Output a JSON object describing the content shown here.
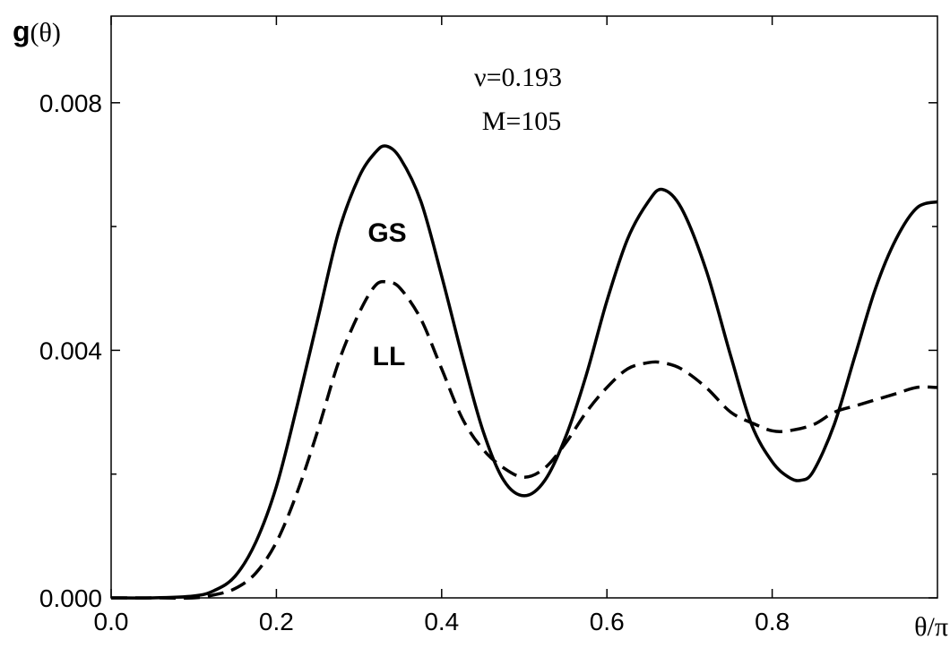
{
  "chart_data": {
    "type": "line",
    "xlabel": "θ/π",
    "ylabel_bold": "g",
    "ylabel_rest": "(θ)",
    "xlim": [
      0.0,
      1.0
    ],
    "ylim": [
      0.0,
      0.0094
    ],
    "xticks": [
      0.0,
      0.2,
      0.4,
      0.6,
      0.8
    ],
    "xtick_labels": [
      "0.0",
      "0.2",
      "0.4",
      "0.6",
      "0.8"
    ],
    "yticks": [
      0.0,
      0.004,
      0.008
    ],
    "ytick_labels": [
      "0.000",
      "0.004",
      "0.008"
    ],
    "minor_yticks": [
      0.002,
      0.006
    ],
    "annotations": [
      "ν=0.193",
      "M=105"
    ],
    "series": [
      {
        "name": "GS",
        "style": "solid",
        "x": [
          0.0,
          0.05,
          0.1,
          0.125,
          0.15,
          0.175,
          0.2,
          0.225,
          0.25,
          0.275,
          0.3,
          0.32,
          0.333,
          0.35,
          0.375,
          0.4,
          0.425,
          0.45,
          0.475,
          0.5,
          0.525,
          0.55,
          0.575,
          0.6,
          0.625,
          0.65,
          0.667,
          0.69,
          0.72,
          0.75,
          0.775,
          0.8,
          0.82,
          0.835,
          0.85,
          0.875,
          0.9,
          0.925,
          0.95,
          0.975,
          1.0
        ],
        "y": [
          0.0,
          0.0,
          3e-05,
          0.00012,
          0.00035,
          0.0009,
          0.0018,
          0.0031,
          0.0045,
          0.0059,
          0.0068,
          0.0072,
          0.0073,
          0.0071,
          0.0064,
          0.0052,
          0.0039,
          0.0027,
          0.0019,
          0.00165,
          0.0019,
          0.0026,
          0.0036,
          0.0048,
          0.0058,
          0.0064,
          0.0066,
          0.0063,
          0.0053,
          0.0039,
          0.0028,
          0.0022,
          0.00195,
          0.0019,
          0.00205,
          0.0028,
          0.0039,
          0.005,
          0.0058,
          0.0063,
          0.0064
        ]
      },
      {
        "name": "LL",
        "style": "dashed",
        "x": [
          0.0,
          0.05,
          0.1,
          0.125,
          0.15,
          0.175,
          0.2,
          0.225,
          0.25,
          0.275,
          0.3,
          0.32,
          0.335,
          0.35,
          0.375,
          0.4,
          0.425,
          0.45,
          0.475,
          0.5,
          0.525,
          0.55,
          0.575,
          0.6,
          0.625,
          0.65,
          0.667,
          0.69,
          0.72,
          0.75,
          0.78,
          0.8,
          0.82,
          0.85,
          0.875,
          0.9,
          0.925,
          0.95,
          0.975,
          1.0
        ],
        "y": [
          0.0,
          0.0,
          0.0,
          5e-05,
          0.00015,
          0.0004,
          0.0009,
          0.0017,
          0.0027,
          0.0038,
          0.0046,
          0.00505,
          0.0051,
          0.005,
          0.0045,
          0.0037,
          0.0029,
          0.0024,
          0.0021,
          0.00195,
          0.0021,
          0.0025,
          0.003,
          0.0034,
          0.0037,
          0.0038,
          0.0038,
          0.0037,
          0.0034,
          0.003,
          0.0028,
          0.0027,
          0.0027,
          0.0028,
          0.003,
          0.0031,
          0.0032,
          0.0033,
          0.0034,
          0.0034
        ]
      }
    ]
  }
}
